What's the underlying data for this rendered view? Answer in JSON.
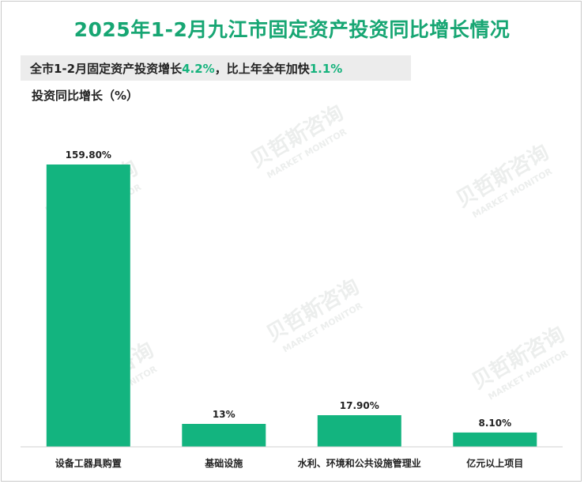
{
  "title": "2025年1-2月九江市固定资产投资同比增长情况",
  "subtitle": {
    "prefix": "全市1-2月固定资产投资增长",
    "value1": "4.2%",
    "middle": "，比上年全年加快",
    "value2": "1.1%"
  },
  "unit_label": "投资同比增长（%）",
  "watermark": {
    "cn": "贝哲斯咨询",
    "en": "MARKET MONITOR"
  },
  "colors": {
    "bar": "#13b47f",
    "title": "#17a673",
    "highlight": "#17b37d"
  },
  "chart_data": {
    "type": "bar",
    "categories": [
      "设备工器具购置",
      "基础设施",
      "水利、环境和公共设施管理业",
      "亿元以上项目"
    ],
    "values": [
      159.8,
      13,
      17.9,
      8.1
    ],
    "data_labels": [
      "159.80%",
      "13%",
      "17.90%",
      "8.10%"
    ],
    "title": "2025年1-2月九江市固定资产投资同比增长情况",
    "xlabel": "",
    "ylabel": "投资同比增长（%）",
    "ylim": [
      0,
      160
    ],
    "grid": false,
    "legend": "none"
  }
}
